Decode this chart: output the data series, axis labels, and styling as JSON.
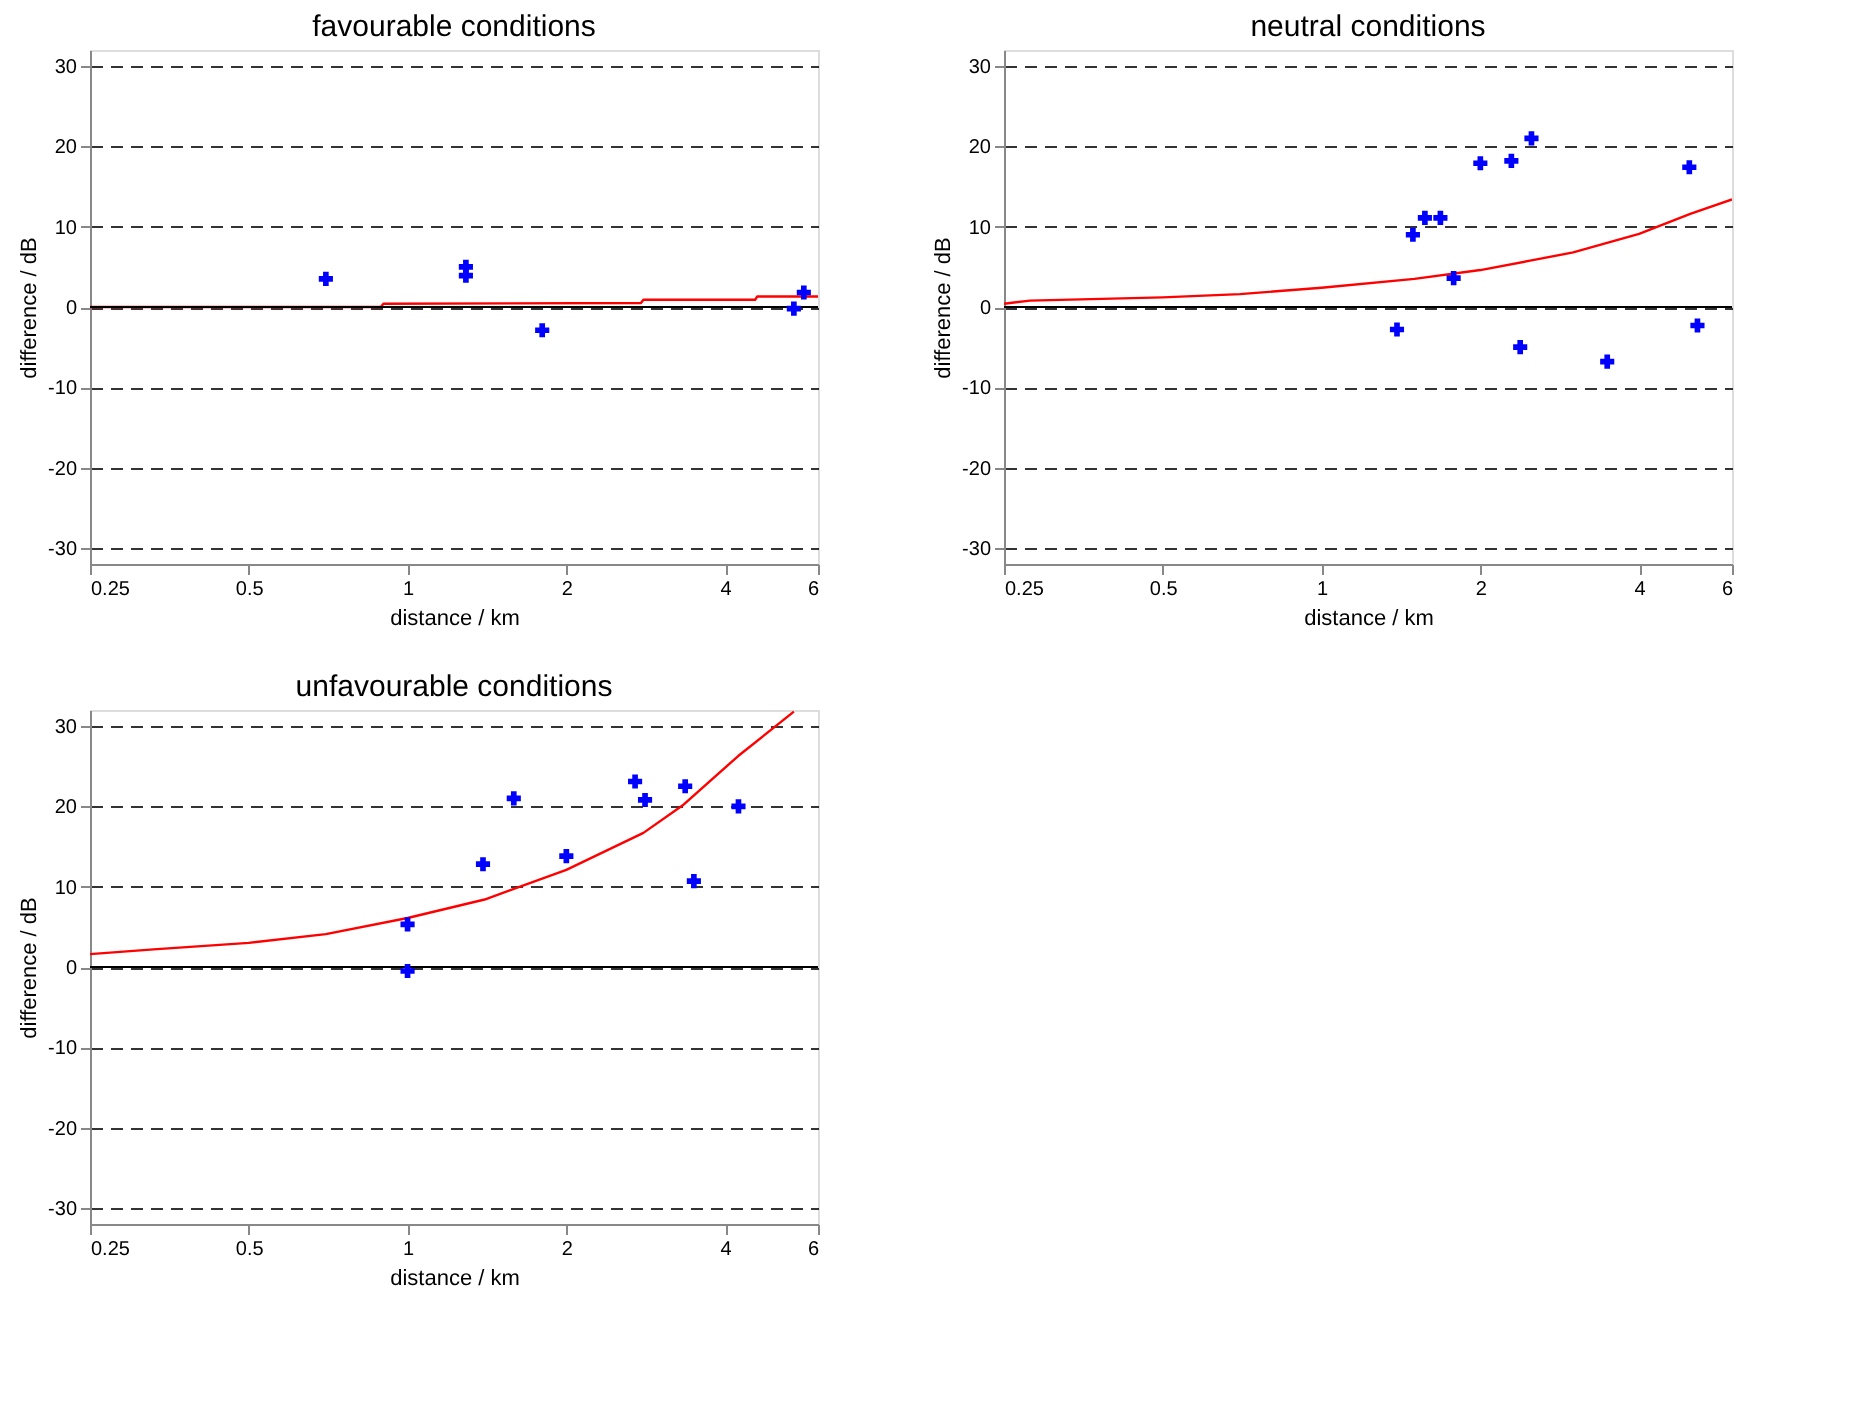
{
  "chart_data": [
    {
      "type": "scatter",
      "title": "favourable conditions",
      "xlabel": "distance /  km",
      "ylabel": "difference / dB",
      "log": "x",
      "grid": "y",
      "xlim": [
        0.25,
        6
      ],
      "xticks": [
        0.25,
        0.5,
        1,
        2,
        4,
        6
      ],
      "ylim": [
        -32,
        32
      ],
      "yticks": [
        -30,
        -20,
        -10,
        0,
        10,
        20,
        30
      ],
      "ref_lines": [
        {
          "axis": "y",
          "value": 0,
          "color": "#000000"
        }
      ],
      "series": [
        {
          "type": "line",
          "color": "#ff0000",
          "x": [
            0.25,
            0.89,
            0.9,
            2.77,
            2.8,
            4.56,
            4.6,
            6
          ],
          "values": [
            0,
            0,
            0.4,
            0.5,
            0.9,
            0.9,
            1.3,
            1.3
          ]
        },
        {
          "marker": "cross",
          "color": "#0000ff",
          "x": [
            0.7,
            1.29,
            1.29,
            1.8,
            5.4,
            5.64
          ],
          "values": [
            3.5,
            5.0,
            3.9,
            -2.9,
            -0.2,
            1.8
          ]
        }
      ]
    },
    {
      "type": "scatter",
      "title": "neutral conditions",
      "xlabel": "distance /  km",
      "ylabel": "difference / dB",
      "log": "x",
      "grid": "y",
      "xlim": [
        0.25,
        6
      ],
      "xticks": [
        0.25,
        0.5,
        1,
        2,
        4,
        6
      ],
      "ylim": [
        -32,
        32
      ],
      "yticks": [
        -30,
        -20,
        -10,
        0,
        10,
        20,
        30
      ],
      "ref_lines": [
        {
          "axis": "y",
          "value": 0,
          "color": "#000000"
        }
      ],
      "series": [
        {
          "type": "line",
          "color": "#ff0000",
          "x": [
            0.25,
            0.28,
            0.5,
            0.7,
            1.0,
            1.5,
            2.0,
            2.5,
            3.0,
            4.0,
            5.0,
            6.0
          ],
          "values": [
            0.4,
            0.8,
            1.2,
            1.6,
            2.4,
            3.5,
            4.6,
            5.8,
            6.8,
            9.1,
            11.6,
            13.4
          ]
        },
        {
          "marker": "cross",
          "color": "#0000ff",
          "x": [
            1.39,
            1.49,
            1.57,
            1.68,
            1.78,
            2.0,
            2.29,
            2.38,
            2.5,
            3.48,
            4.98,
            5.16
          ],
          "values": [
            -2.8,
            9.0,
            11.1,
            11.1,
            3.6,
            17.9,
            18.2,
            -5.0,
            21.0,
            -6.8,
            17.4,
            -2.3
          ]
        }
      ]
    },
    {
      "type": "scatter",
      "title": "unfavourable conditions",
      "xlabel": "distance /  km",
      "ylabel": "difference / dB",
      "log": "x",
      "grid": "y",
      "xlim": [
        0.25,
        6
      ],
      "xticks": [
        0.25,
        0.5,
        1,
        2,
        4,
        6
      ],
      "ylim": [
        -32,
        32
      ],
      "yticks": [
        -30,
        -20,
        -10,
        0,
        10,
        20,
        30
      ],
      "ref_lines": [
        {
          "axis": "y",
          "value": 0,
          "color": "#000000"
        }
      ],
      "series": [
        {
          "type": "line",
          "color": "#ff0000",
          "x": [
            0.25,
            0.33,
            0.5,
            0.7,
            1.0,
            1.4,
            2.0,
            2.8,
            3.32,
            4.24,
            5.4
          ],
          "values": [
            1.6,
            2.2,
            3.0,
            4.1,
            6.1,
            8.4,
            12.1,
            16.7,
            20.1,
            26.3,
            31.8
          ]
        },
        {
          "marker": "cross",
          "color": "#0000ff",
          "x": [
            1.0,
            1.0,
            1.39,
            1.59,
            2.0,
            2.7,
            2.82,
            3.36,
            3.49,
            4.24
          ],
          "values": [
            5.3,
            -0.5,
            12.8,
            21.0,
            13.8,
            23.1,
            20.8,
            22.5,
            10.7,
            20.0
          ]
        }
      ]
    }
  ]
}
